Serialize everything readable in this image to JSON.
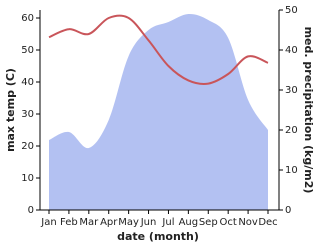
{
  "chart_data": {
    "type": "line-area",
    "x_label": "date (month)",
    "y_label": "max temp (C)",
    "y2_label": "med. precipitation (kg/m2)",
    "categories": [
      "Jan",
      "Feb",
      "Mar",
      "Apr",
      "May",
      "Jun",
      "Jul",
      "Aug",
      "Sep",
      "Oct",
      "Nov",
      "Dec"
    ],
    "series": [
      {
        "name": "med. precipitation",
        "color": "#b3c1f2",
        "axis": "y2",
        "kind": "area",
        "values": [
          17.5,
          19.5,
          15.5,
          22.5,
          38.5,
          45,
          47,
          49,
          47.5,
          43,
          27.5,
          20
        ]
      },
      {
        "name": "max temp",
        "color": "#c9555a",
        "axis": "y",
        "kind": "line",
        "values": [
          54,
          56.5,
          55,
          60,
          60,
          53,
          45,
          40.5,
          39.5,
          42.5,
          48,
          46
        ]
      }
    ],
    "ylim": [
      0,
      62.5
    ],
    "yticks": [
      0,
      10,
      20,
      30,
      40,
      50,
      60
    ],
    "y2lim": [
      0,
      50
    ],
    "y2ticks": [
      0,
      10,
      20,
      30,
      40,
      50
    ]
  }
}
